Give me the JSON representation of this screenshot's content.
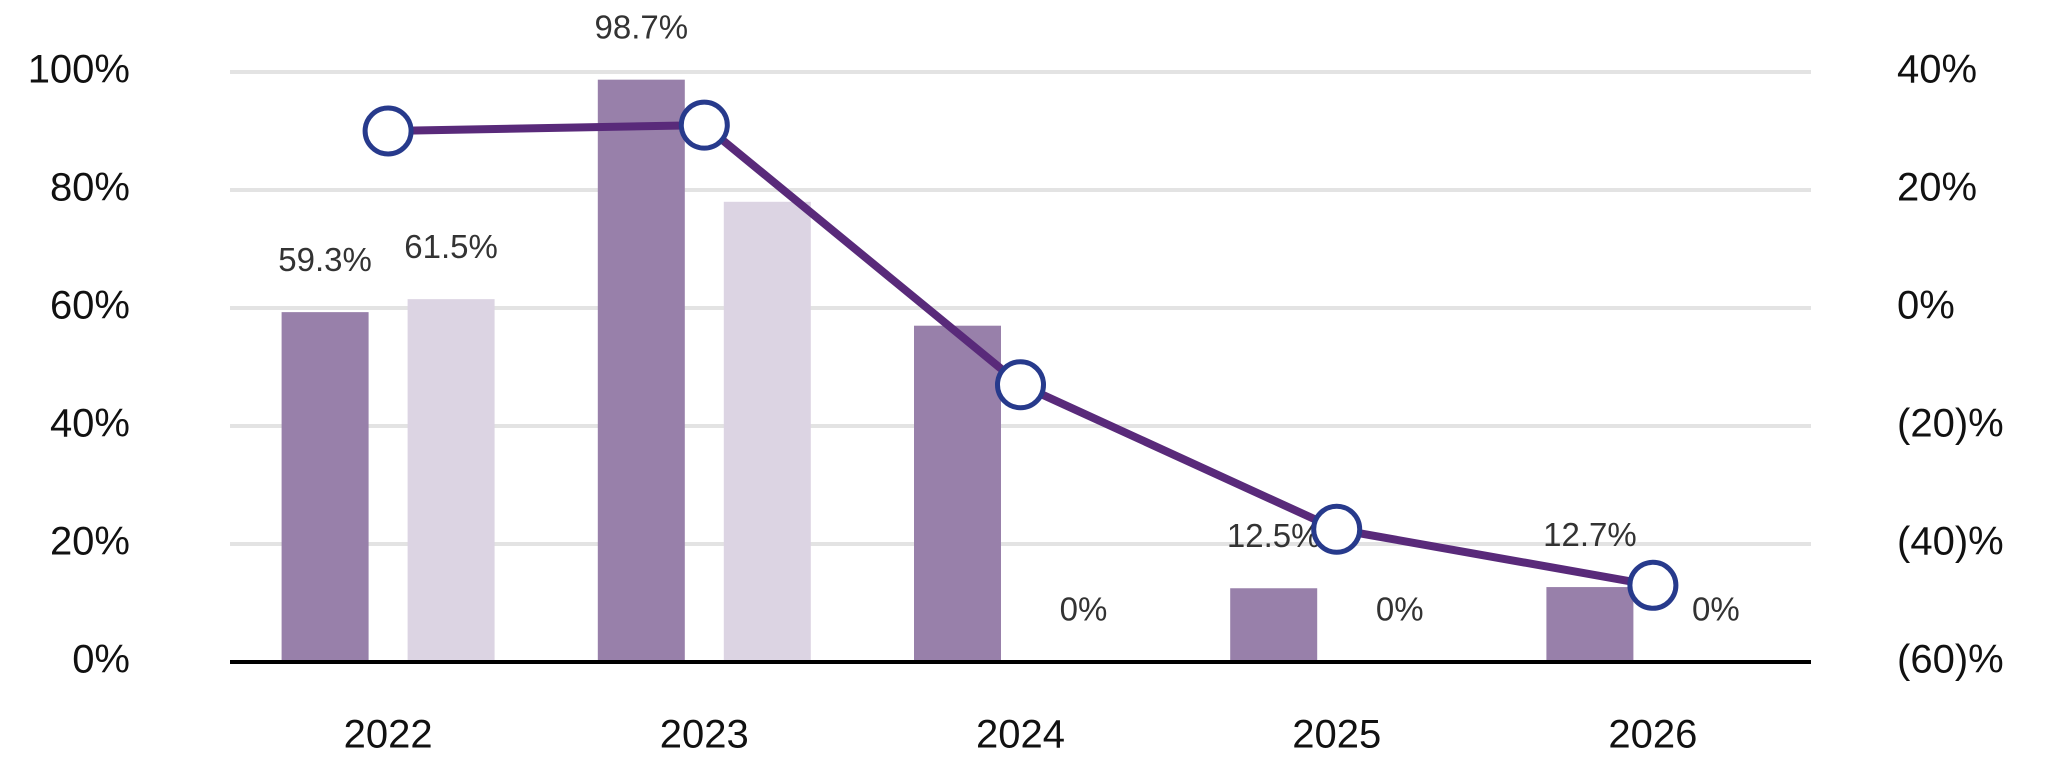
{
  "chart_data": {
    "type": "bar",
    "categories": [
      "2022",
      "2023",
      "2024",
      "2025",
      "2026"
    ],
    "series": [
      {
        "color": "#9880aa",
        "values": [
          59.3,
          98.7,
          57,
          12.5,
          12.7
        ],
        "value_labels": [
          "59.3%",
          "98.7%",
          null,
          "12.5%",
          "12.7%"
        ]
      },
      {
        "color": "#dcd4e3",
        "values": [
          61.5,
          78,
          0,
          0,
          0
        ],
        "value_labels": [
          "61.5%",
          null,
          "0%",
          "0%",
          "0%"
        ]
      },
      {
        "type": "line",
        "axis": "y2",
        "color": "#592a7a",
        "marker_edge_color": "#273a8c",
        "values": [
          30,
          31,
          -13,
          -37.5,
          -47
        ]
      }
    ],
    "ylim": [
      0,
      100
    ],
    "yticks": [
      {
        "value": 0,
        "label": "0%"
      },
      {
        "value": 20,
        "label": "20%"
      },
      {
        "value": 40,
        "label": "40%"
      },
      {
        "value": 60,
        "label": "60%"
      },
      {
        "value": 80,
        "label": "80%"
      },
      {
        "value": 100,
        "label": "100%"
      }
    ],
    "y2lim": [
      -60,
      40
    ],
    "y2ticks": [
      {
        "value": -60,
        "label": "(60)%"
      },
      {
        "value": -40,
        "label": "(40)%"
      },
      {
        "value": -20,
        "label": "(20)%"
      },
      {
        "value": 0,
        "label": "0%"
      },
      {
        "value": 20,
        "label": "20%"
      },
      {
        "value": 40,
        "label": "40%"
      }
    ],
    "grid": true
  }
}
